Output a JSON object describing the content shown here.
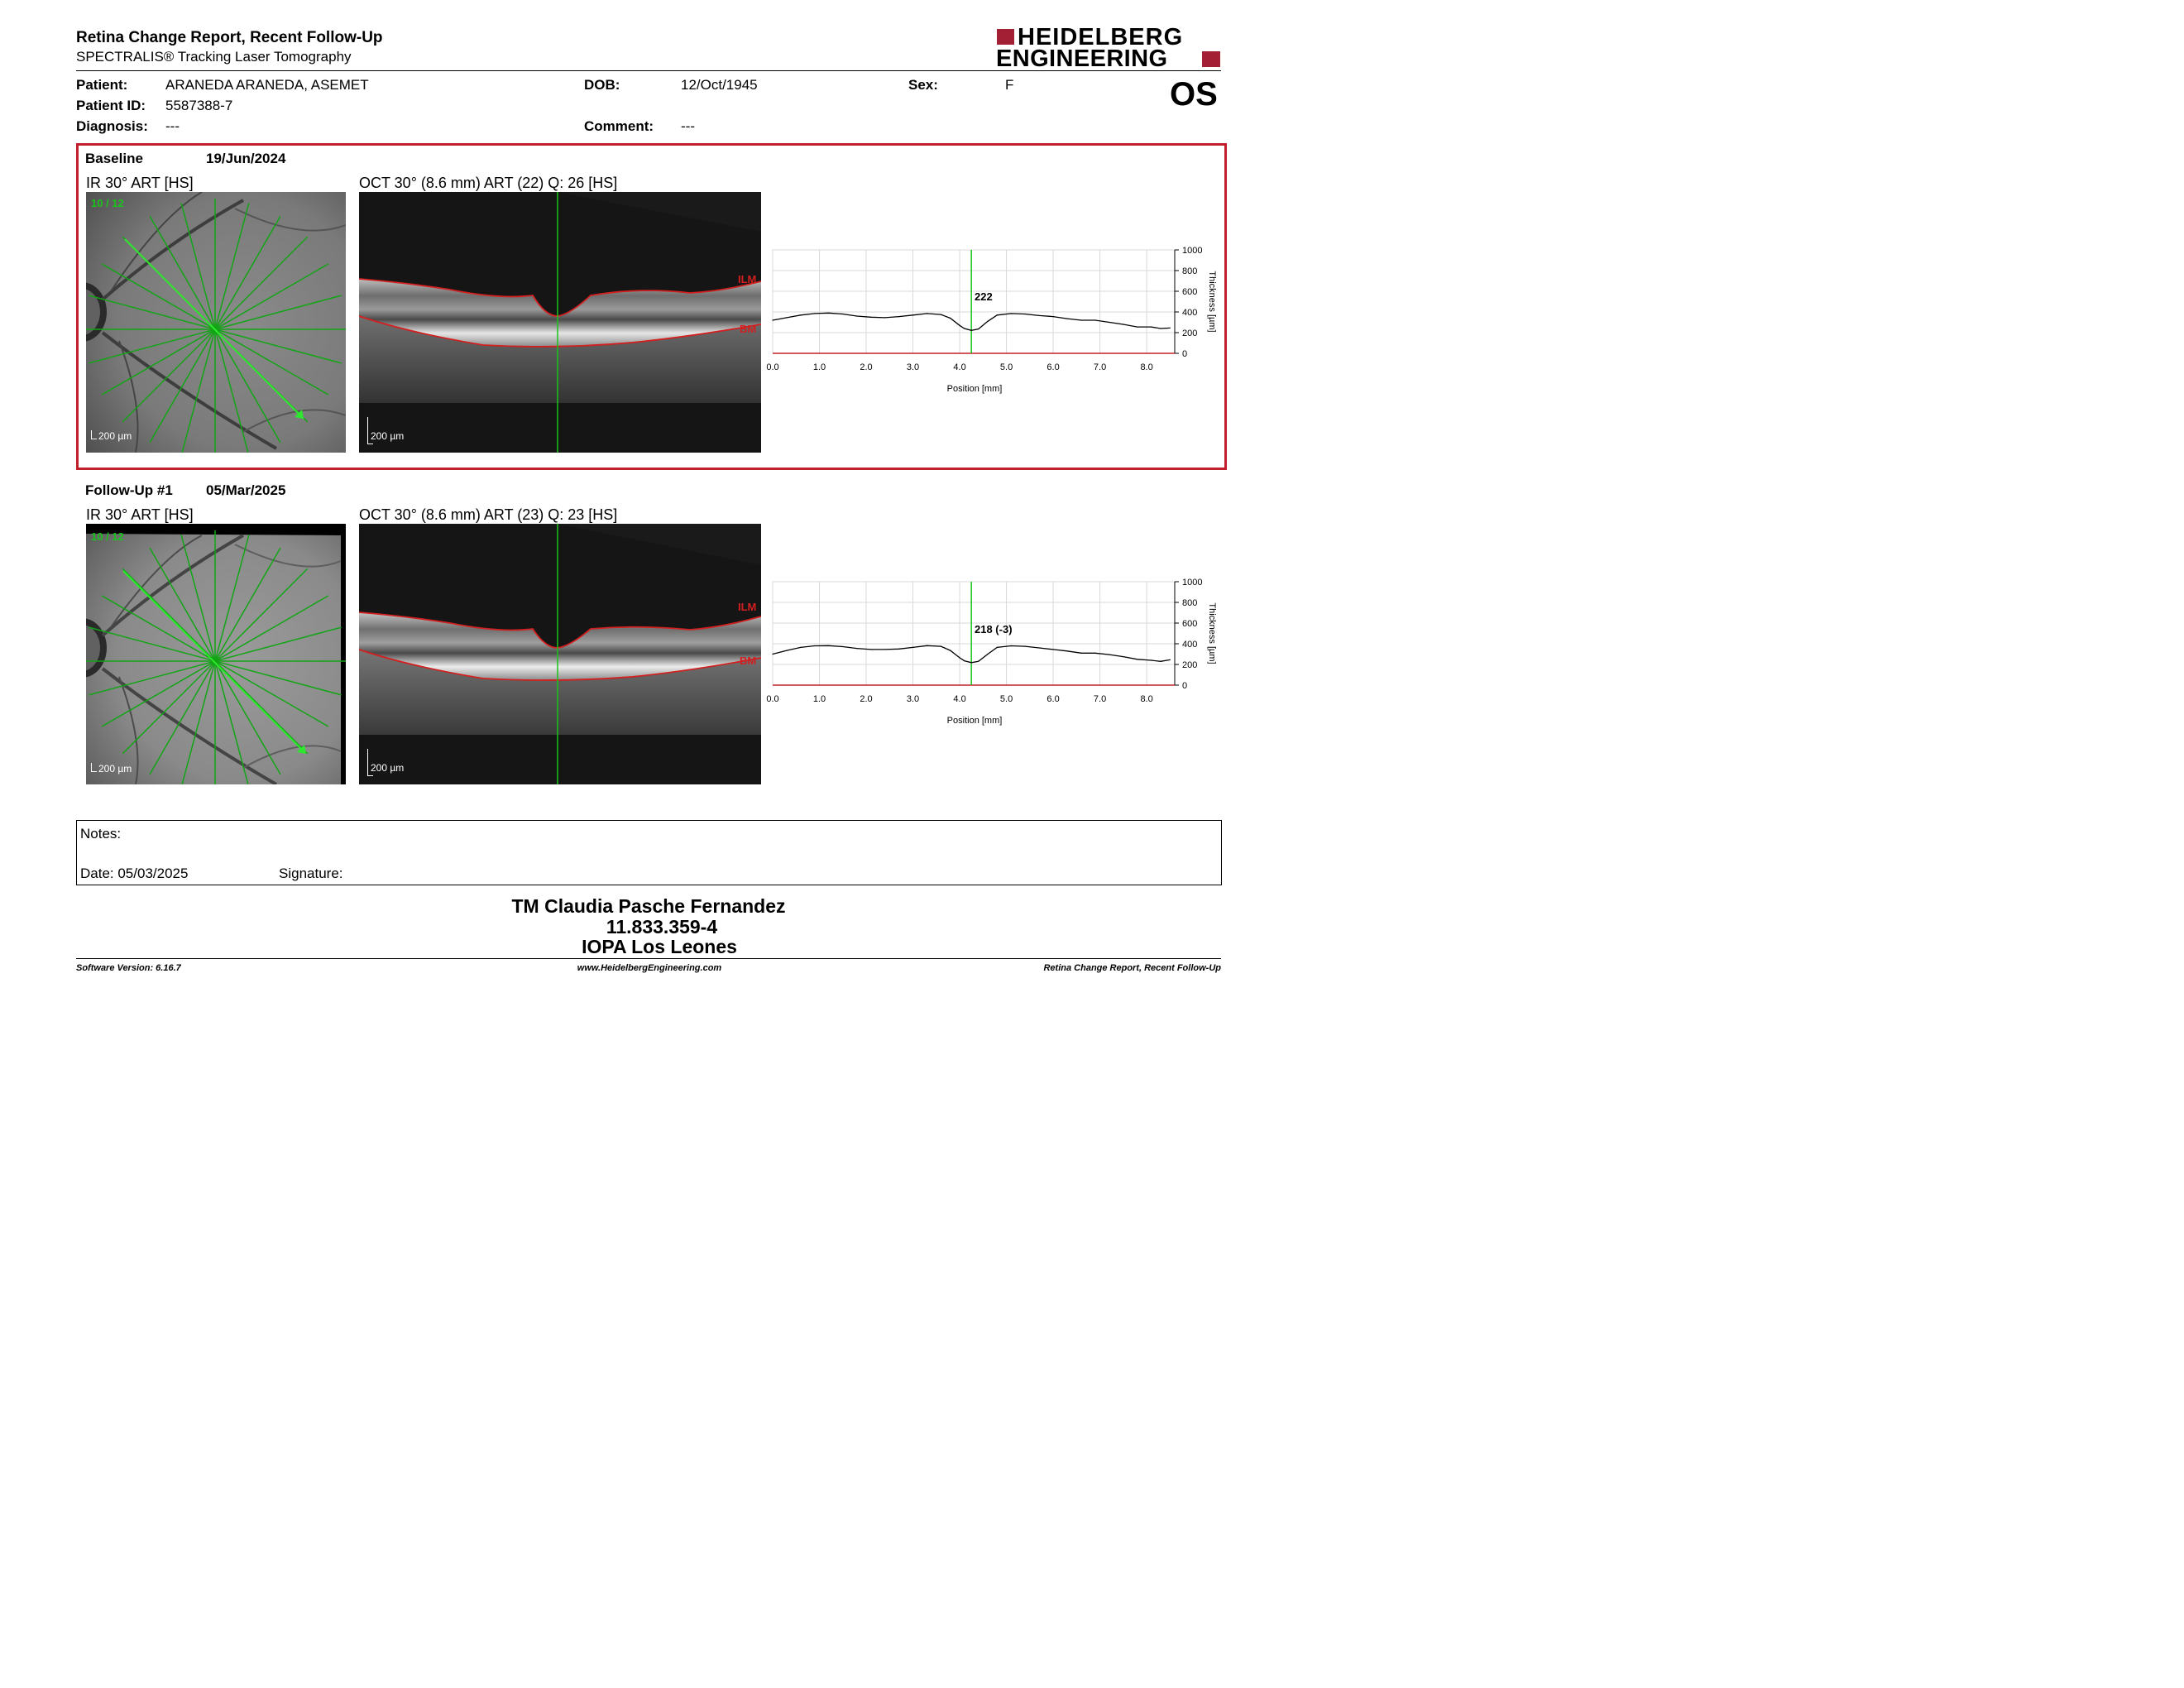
{
  "header": {
    "title": "Retina Change Report, Recent Follow-Up",
    "subtitle": "SPECTRALIS® Tracking Laser Tomography",
    "logo_line1": "HEIDELBERG",
    "logo_line2": "ENGINEERING",
    "eye": "OS"
  },
  "patient": {
    "patient_label": "Patient:",
    "patient_value": "ARANEDA ARANEDA, ASEMET",
    "dob_label": "DOB:",
    "dob_value": "12/Oct/1945",
    "sex_label": "Sex:",
    "sex_value": "F",
    "id_label": "Patient ID:",
    "id_value": "5587388-7",
    "diagnosis_label": "Diagnosis:",
    "diagnosis_value": "---",
    "comment_label": "Comment:",
    "comment_value": "---"
  },
  "exams": [
    {
      "label": "Baseline",
      "date": "19/Jun/2024",
      "ir_title": "IR 30° ART [HS]",
      "ir_counter": "10 / 12",
      "ir_scale": "200 µm",
      "oct_title": "OCT 30° (8.6 mm) ART (22) Q: 26 [HS]",
      "oct_scale": "200 µm",
      "ilm": "ILM",
      "bm": "BM",
      "cursor_value": "222"
    },
    {
      "label": "Follow-Up #1",
      "date": "05/Mar/2025",
      "ir_title": "IR 30° ART [HS]",
      "ir_counter": "10 / 12",
      "ir_scale": "200 µm",
      "oct_title": "OCT 30° (8.6 mm) ART (23) Q: 23 [HS]",
      "oct_scale": "200 µm",
      "ilm": "ILM",
      "bm": "BM",
      "cursor_value": "218 (-3)"
    }
  ],
  "chart_data": [
    {
      "type": "line",
      "xlabel": "Position [mm]",
      "ylabel": "Thickness [µm]",
      "xlim": [
        0,
        8.6
      ],
      "ylim": [
        0,
        1000
      ],
      "xticks": [
        "0.0",
        "1.0",
        "2.0",
        "3.0",
        "4.0",
        "5.0",
        "6.0",
        "7.0",
        "8.0"
      ],
      "yticks": [
        "0",
        "200",
        "400",
        "600",
        "800",
        "1000"
      ],
      "grid": true,
      "cursor_x": 4.25,
      "series": [
        {
          "x": [
            0,
            0.3,
            0.6,
            0.9,
            1.2,
            1.5,
            1.8,
            2.1,
            2.4,
            2.7,
            3.0,
            3.3,
            3.6,
            3.8,
            4.0,
            4.1,
            4.25,
            4.4,
            4.6,
            4.8,
            5.1,
            5.4,
            5.7,
            6.0,
            6.3,
            6.6,
            6.9,
            7.2,
            7.5,
            7.8,
            8.1,
            8.3,
            8.5
          ],
          "y": [
            320,
            345,
            370,
            385,
            390,
            380,
            360,
            350,
            345,
            355,
            370,
            385,
            375,
            340,
            270,
            240,
            222,
            235,
            310,
            370,
            385,
            380,
            365,
            355,
            335,
            320,
            320,
            300,
            280,
            255,
            255,
            240,
            245
          ]
        }
      ]
    },
    {
      "type": "line",
      "xlabel": "Position [mm]",
      "ylabel": "Thickness [µm]",
      "xlim": [
        0,
        8.6
      ],
      "ylim": [
        0,
        1000
      ],
      "xticks": [
        "0.0",
        "1.0",
        "2.0",
        "3.0",
        "4.0",
        "5.0",
        "6.0",
        "7.0",
        "8.0"
      ],
      "yticks": [
        "0",
        "200",
        "400",
        "600",
        "800",
        "1000"
      ],
      "grid": true,
      "cursor_x": 4.25,
      "series": [
        {
          "x": [
            0,
            0.3,
            0.6,
            0.9,
            1.2,
            1.5,
            1.8,
            2.1,
            2.4,
            2.7,
            3.0,
            3.3,
            3.6,
            3.8,
            4.0,
            4.1,
            4.25,
            4.4,
            4.6,
            4.8,
            5.1,
            5.4,
            5.7,
            6.0,
            6.3,
            6.6,
            6.9,
            7.2,
            7.5,
            7.8,
            8.1,
            8.3,
            8.5
          ],
          "y": [
            300,
            335,
            365,
            380,
            382,
            372,
            355,
            345,
            345,
            350,
            365,
            382,
            375,
            335,
            265,
            235,
            218,
            230,
            300,
            365,
            380,
            375,
            360,
            345,
            330,
            310,
            310,
            295,
            275,
            250,
            240,
            230,
            245
          ]
        }
      ]
    }
  ],
  "notes": {
    "notes_label": "Notes:",
    "date_label": "Date: 05/03/2025",
    "signature_label": "Signature:"
  },
  "signatory": {
    "name": "TM Claudia Pasche Fernandez",
    "rut": "11.833.359-4",
    "institution": "IOPA Los Leones"
  },
  "footer": {
    "software": "Software Version: 6.16.7",
    "url": "www.HeidelbergEngineering.com",
    "report_name": "Retina Change Report, Recent Follow-Up"
  },
  "colors": {
    "brand_red": "#a31f34",
    "scan_green": "#19c41a",
    "segmentation_red": "#d21f1f"
  }
}
